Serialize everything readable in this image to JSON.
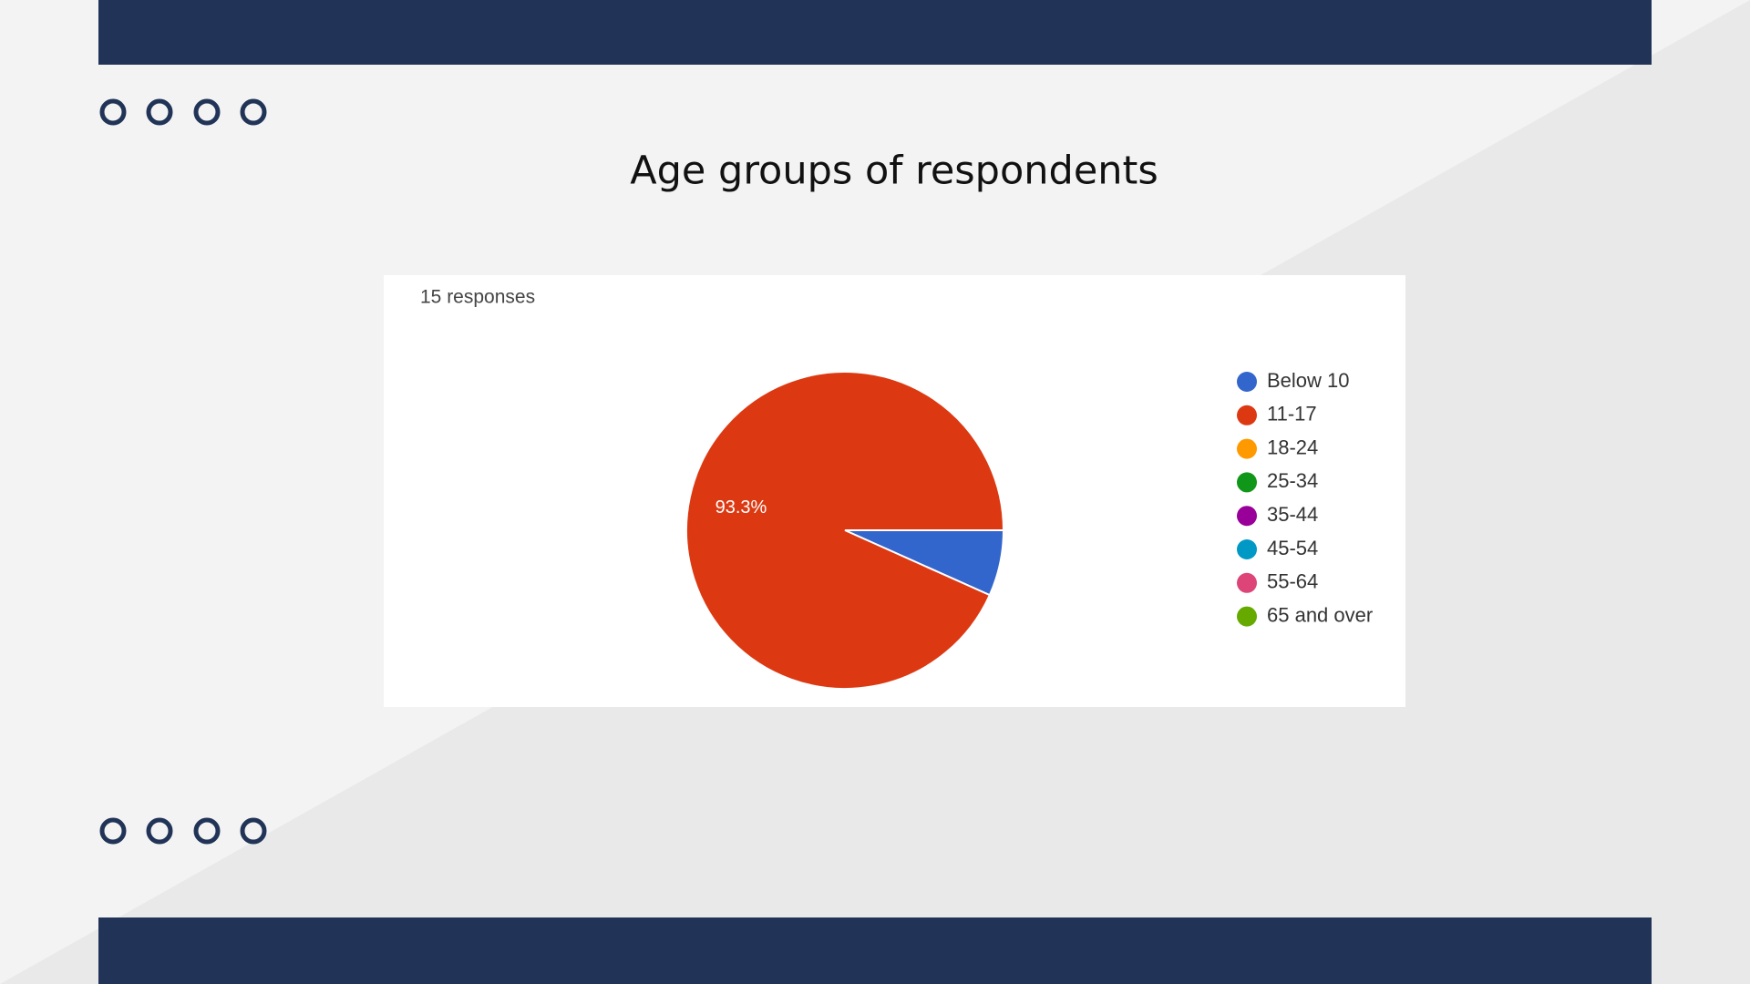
{
  "chart_data": {
    "type": "pie",
    "title": "Age groups of respondents",
    "subtitle": "15 responses",
    "categories": [
      "Below 10",
      "11-17",
      "18-24",
      "25-34",
      "35-44",
      "45-54",
      "55-64",
      "65 and over"
    ],
    "values": [
      6.7,
      93.3,
      0,
      0,
      0,
      0,
      0,
      0
    ],
    "value_labels": [
      null,
      "93.3%",
      null,
      null,
      null,
      null,
      null,
      null
    ],
    "colors": [
      "#3366cc",
      "#dc3912",
      "#ff9900",
      "#109618",
      "#990099",
      "#0099c6",
      "#dd4477",
      "#66aa00"
    ],
    "legend": "right"
  }
}
